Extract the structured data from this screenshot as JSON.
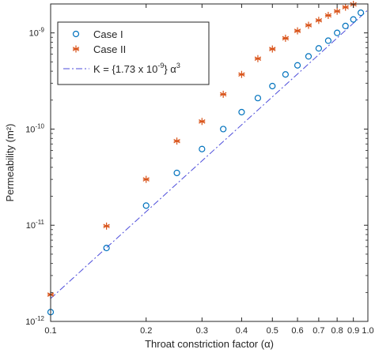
{
  "chart_data": {
    "type": "scatter",
    "xlabel": "Throat constriction factor (α)",
    "ylabel": "Permeability (m²)",
    "xscale": "log",
    "yscale": "log",
    "xlim": [
      0.1,
      1.0
    ],
    "ylim": [
      1e-12,
      2e-09
    ],
    "grid": false,
    "legend_position": "top-left",
    "x_ticks": [
      {
        "value": 0.1,
        "label": "0.1"
      },
      {
        "value": 0.2,
        "label": "0.2"
      },
      {
        "value": 0.3,
        "label": "0.3"
      },
      {
        "value": 0.4,
        "label": "0.4"
      },
      {
        "value": 0.5,
        "label": "0.5"
      },
      {
        "value": 0.6,
        "label": "0.6"
      },
      {
        "value": 0.7,
        "label": "0.7"
      },
      {
        "value": 0.8,
        "label": "0.8"
      },
      {
        "value": 0.9,
        "label": "0.9"
      },
      {
        "value": 1.0,
        "label": "1.0"
      }
    ],
    "y_ticks": [
      {
        "value": 1e-12,
        "base": "10",
        "exp": "-12"
      },
      {
        "value": 1e-11,
        "base": "10",
        "exp": "-11"
      },
      {
        "value": 1e-10,
        "base": "10",
        "exp": "-10"
      },
      {
        "value": 1e-09,
        "base": "10",
        "exp": "-9"
      }
    ],
    "series": [
      {
        "name": "Case I",
        "marker": "circle",
        "color": "#0072BD",
        "x": [
          0.1,
          0.15,
          0.2,
          0.25,
          0.3,
          0.35,
          0.4,
          0.45,
          0.5,
          0.55,
          0.6,
          0.65,
          0.7,
          0.75,
          0.8,
          0.85,
          0.9,
          0.95
        ],
        "y": [
          1.25e-12,
          5.8e-12,
          1.6e-11,
          3.5e-11,
          6.2e-11,
          1e-10,
          1.5e-10,
          2.1e-10,
          2.8e-10,
          3.7e-10,
          4.6e-10,
          5.7e-10,
          6.9e-10,
          8.3e-10,
          1e-09,
          1.18e-09,
          1.38e-09,
          1.62e-09
        ]
      },
      {
        "name": "Case II",
        "marker": "asterisk",
        "color": "#D95319",
        "x": [
          0.1,
          0.15,
          0.2,
          0.25,
          0.3,
          0.35,
          0.4,
          0.45,
          0.5,
          0.55,
          0.6,
          0.65,
          0.7,
          0.75,
          0.8,
          0.85,
          0.9
        ],
        "y": [
          1.9e-12,
          9.8e-12,
          3e-11,
          7.5e-11,
          1.2e-10,
          2.3e-10,
          3.7e-10,
          5.4e-10,
          6.8e-10,
          8.8e-10,
          1.05e-09,
          1.2e-09,
          1.35e-09,
          1.52e-09,
          1.68e-09,
          1.85e-09,
          1.98e-09
        ]
      },
      {
        "name": "K = {1.73 x 10",
        "name_sup": "-9",
        "name_suffix": "} α",
        "name_suffix_sup": "3",
        "marker": "dashdot-line",
        "color": "#4D4DDB",
        "coefficient": 1.73e-09,
        "exponent": 3
      }
    ]
  }
}
